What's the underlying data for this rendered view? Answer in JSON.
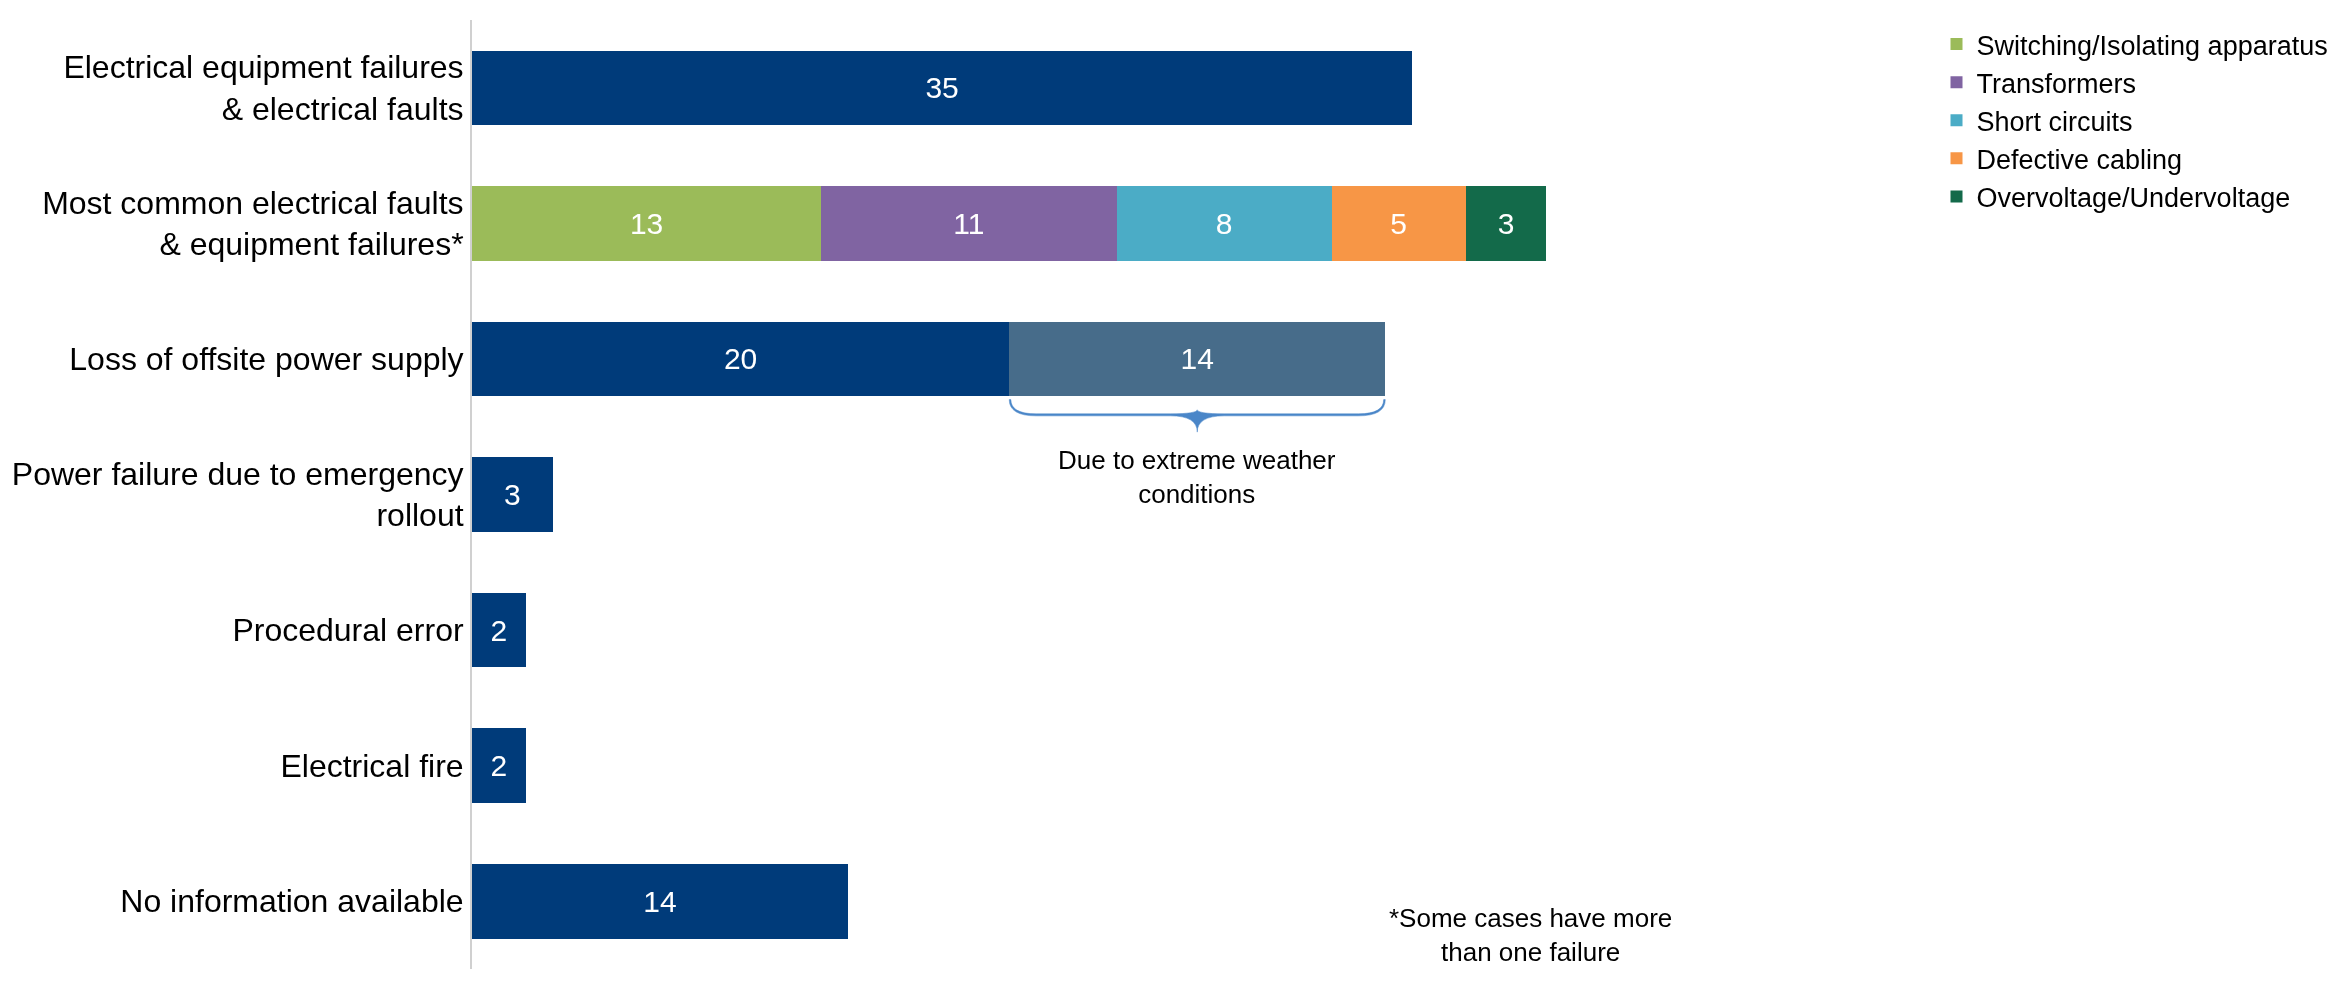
{
  "chart_data": {
    "type": "bar",
    "orientation": "horizontal",
    "stacked": true,
    "data_labels": true,
    "legend": "top right",
    "categories": [
      "Electrical equipment failures & electrical faults",
      "Most common electrical faults & equipment failures*",
      "Loss of offsite power supply",
      "Power failure due to emergency rollout",
      "Procedural error",
      "Electrical fire",
      "No information available"
    ],
    "series": [
      {
        "color": "#003b7a",
        "values": [
          35,
          null,
          20,
          3,
          2,
          2,
          14
        ]
      },
      {
        "color": "#476c8a",
        "values": [
          null,
          null,
          14,
          null,
          null,
          null,
          null
        ]
      },
      {
        "name": "Switching/Isolating apparatus",
        "color": "#9bbb59",
        "values": [
          null,
          13,
          null,
          null,
          null,
          null,
          null
        ]
      },
      {
        "name": "Transformers",
        "color": "#8064a2",
        "values": [
          null,
          11,
          null,
          null,
          null,
          null,
          null
        ]
      },
      {
        "name": "Short circuits",
        "color": "#4bacc6",
        "values": [
          null,
          8,
          null,
          null,
          null,
          null,
          null
        ]
      },
      {
        "name": "Defective cabling",
        "color": "#f79646",
        "values": [
          null,
          5,
          null,
          null,
          null,
          null,
          null
        ]
      },
      {
        "name": "Overvoltage/Undervoltage",
        "color": "#136a4a",
        "values": [
          null,
          3,
          null,
          null,
          null,
          null,
          null
        ]
      }
    ],
    "annotations": [
      "Due to extreme weather conditions",
      "*Some cases have more than one failure"
    ]
  }
}
